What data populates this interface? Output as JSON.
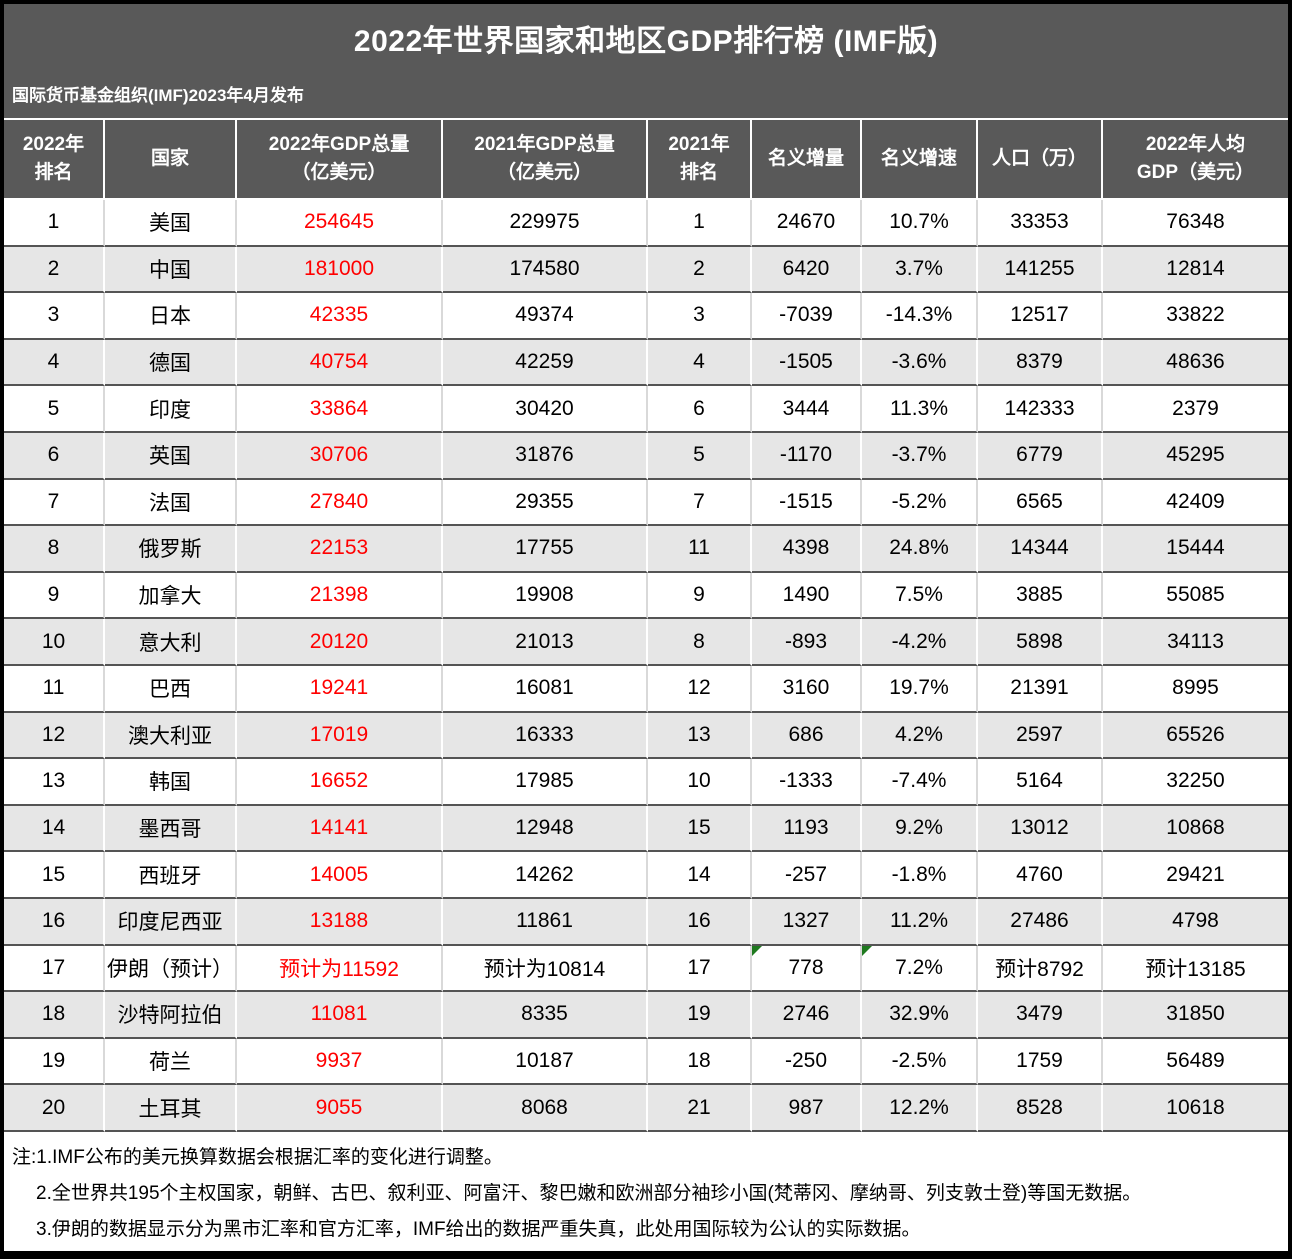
{
  "title": "2022年世界国家和地区GDP排行榜 (IMF版)",
  "subtitle": "国际货币基金组织(IMF)2023年4月发布",
  "colors": {
    "header_bg": "#595959",
    "row_alt": "#E6E6E6",
    "highlight_red": "#FF0000",
    "flag_green": "#1F7A1F"
  },
  "table": {
    "headers": [
      "2022年\n排名",
      "国家",
      "2022年GDP总量\n（亿美元）",
      "2021年GDP总量\n（亿美元）",
      "2021年\n排名",
      "名义增量",
      "名义增速",
      "人口（万）",
      "2022年人均\nGDP（美元）"
    ],
    "rows": [
      [
        "1",
        "美国",
        "254645",
        "229975",
        "1",
        "24670",
        "10.7%",
        "33353",
        "76348"
      ],
      [
        "2",
        "中国",
        "181000",
        "174580",
        "2",
        "6420",
        "3.7%",
        "141255",
        "12814"
      ],
      [
        "3",
        "日本",
        "42335",
        "49374",
        "3",
        "-7039",
        "-14.3%",
        "12517",
        "33822"
      ],
      [
        "4",
        "德国",
        "40754",
        "42259",
        "4",
        "-1505",
        "-3.6%",
        "8379",
        "48636"
      ],
      [
        "5",
        "印度",
        "33864",
        "30420",
        "6",
        "3444",
        "11.3%",
        "142333",
        "2379"
      ],
      [
        "6",
        "英国",
        "30706",
        "31876",
        "5",
        "-1170",
        "-3.7%",
        "6779",
        "45295"
      ],
      [
        "7",
        "法国",
        "27840",
        "29355",
        "7",
        "-1515",
        "-5.2%",
        "6565",
        "42409"
      ],
      [
        "8",
        "俄罗斯",
        "22153",
        "17755",
        "11",
        "4398",
        "24.8%",
        "14344",
        "15444"
      ],
      [
        "9",
        "加拿大",
        "21398",
        "19908",
        "9",
        "1490",
        "7.5%",
        "3885",
        "55085"
      ],
      [
        "10",
        "意大利",
        "20120",
        "21013",
        "8",
        "-893",
        "-4.2%",
        "5898",
        "34113"
      ],
      [
        "11",
        "巴西",
        "19241",
        "16081",
        "12",
        "3160",
        "19.7%",
        "21391",
        "8995"
      ],
      [
        "12",
        "澳大利亚",
        "17019",
        "16333",
        "13",
        "686",
        "4.2%",
        "2597",
        "65526"
      ],
      [
        "13",
        "韩国",
        "16652",
        "17985",
        "10",
        "-1333",
        "-7.4%",
        "5164",
        "32250"
      ],
      [
        "14",
        "墨西哥",
        "14141",
        "12948",
        "15",
        "1193",
        "9.2%",
        "13012",
        "10868"
      ],
      [
        "15",
        "西班牙",
        "14005",
        "14262",
        "14",
        "-257",
        "-1.8%",
        "4760",
        "29421"
      ],
      [
        "16",
        "印度尼西亚",
        "13188",
        "11861",
        "16",
        "1327",
        "11.2%",
        "27486",
        "4798"
      ],
      [
        "17",
        "伊朗（预计）",
        "预计为11592",
        "预计为10814",
        "17",
        "778",
        "7.2%",
        "预计8792",
        "预计13185"
      ],
      [
        "18",
        "沙特阿拉伯",
        "11081",
        "8335",
        "19",
        "2746",
        "32.9%",
        "3479",
        "31850"
      ],
      [
        "19",
        "荷兰",
        "9937",
        "10187",
        "18",
        "-250",
        "-2.5%",
        "1759",
        "56489"
      ],
      [
        "20",
        "土耳其",
        "9055",
        "8068",
        "21",
        "987",
        "12.2%",
        "8528",
        "10618"
      ]
    ],
    "red_column_index": 2,
    "flag_cells": [
      {
        "row": 16,
        "col": 5
      },
      {
        "row": 16,
        "col": 6
      }
    ]
  },
  "notes": [
    "注:1.IMF公布的美元换算数据会根据汇率的变化进行调整。",
    "2.全世界共195个主权国家，朝鲜、古巴、叙利亚、阿富汗、黎巴嫩和欧洲部分袖珍小国(梵蒂冈、摩纳哥、列支敦士登)等国无数据。",
    "3.伊朗的数据显示分为黑市汇率和官方汇率，IMF给出的数据严重失真，此处用国际较为公认的实际数据。"
  ]
}
